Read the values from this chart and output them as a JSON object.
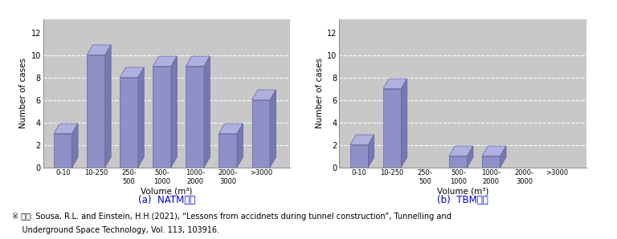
{
  "categories": [
    "0-10",
    "10-250",
    "250-\n500",
    "500-\n1000",
    "1000-\n2000",
    "2000-\n3000",
    ">3000"
  ],
  "natm_values": [
    3,
    10,
    8,
    9,
    9,
    3,
    6
  ],
  "tbm_values": [
    2,
    7,
    0,
    1,
    1,
    0,
    0
  ],
  "bar_color_front": "#9090c8",
  "bar_color_top": "#b0b0de",
  "bar_color_side": "#7878b0",
  "bar_edge_color": "#6060a0",
  "ylabel": "Number of cases",
  "xlabel": "Volume (m³)",
  "title_a": "(a)  NATM터널",
  "title_b": "(b)  TBM터널",
  "ylim": [
    0,
    12
  ],
  "yticks": [
    0,
    2,
    4,
    6,
    8,
    10,
    12
  ],
  "plot_bg": "#c8c8c8",
  "floor_color": "#b0b0b0",
  "source_text_1": "※ 출잘: Sousa, R.L. and Einstein, H.H.(2021), “Lessons from accidnets during tunnel construction”, Tunnelling and",
  "source_text_2": "    Underground Space Technology, Vol. 113, 103916.",
  "fig_width": 7.68,
  "fig_height": 2.98
}
